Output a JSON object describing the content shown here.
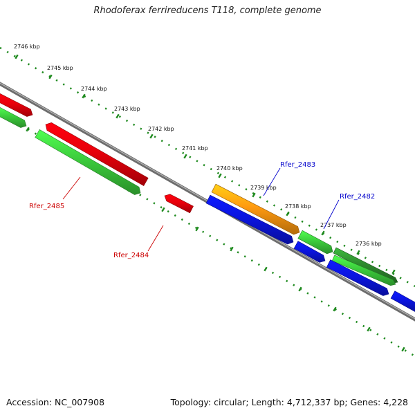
{
  "title": "Rhodoferax ferrireducens T118, complete genome",
  "accession_text": "Accession: NC_007908",
  "summary_text": "Topology: circular; Length: 4,712,337 bp; Genes: 4,228",
  "scale": {
    "unit": "kbp",
    "ticks": [
      {
        "label": "2746 kbp"
      },
      {
        "label": "2745 kbp"
      },
      {
        "label": "2744 kbp"
      },
      {
        "label": "2743 kbp"
      },
      {
        "label": "2742 kbp"
      },
      {
        "label": "2741 kbp"
      },
      {
        "label": "2740 kbp"
      },
      {
        "label": "2739 kbp"
      },
      {
        "label": "2738 kbp"
      },
      {
        "label": "2737 kbp"
      },
      {
        "label": "2736 kbp"
      }
    ]
  },
  "colors": {
    "red": "#e8000b",
    "green": "#3ccc3c",
    "darkgreen": "#2e8b2e",
    "orange": "#ff9a10",
    "blue": "#0a14e0",
    "backbone": "#808080",
    "dots": "#1e8a1e",
    "label_red": "#cc0000",
    "label_blue": "#0000cc"
  },
  "genes": [
    {
      "label": "Rfer_2485",
      "label_color": "label_red"
    },
    {
      "label": "Rfer_2484",
      "label_color": "label_red"
    },
    {
      "label": "Rfer_2483",
      "label_color": "label_blue"
    },
    {
      "label": "Rfer_2482",
      "label_color": "label_blue"
    }
  ]
}
